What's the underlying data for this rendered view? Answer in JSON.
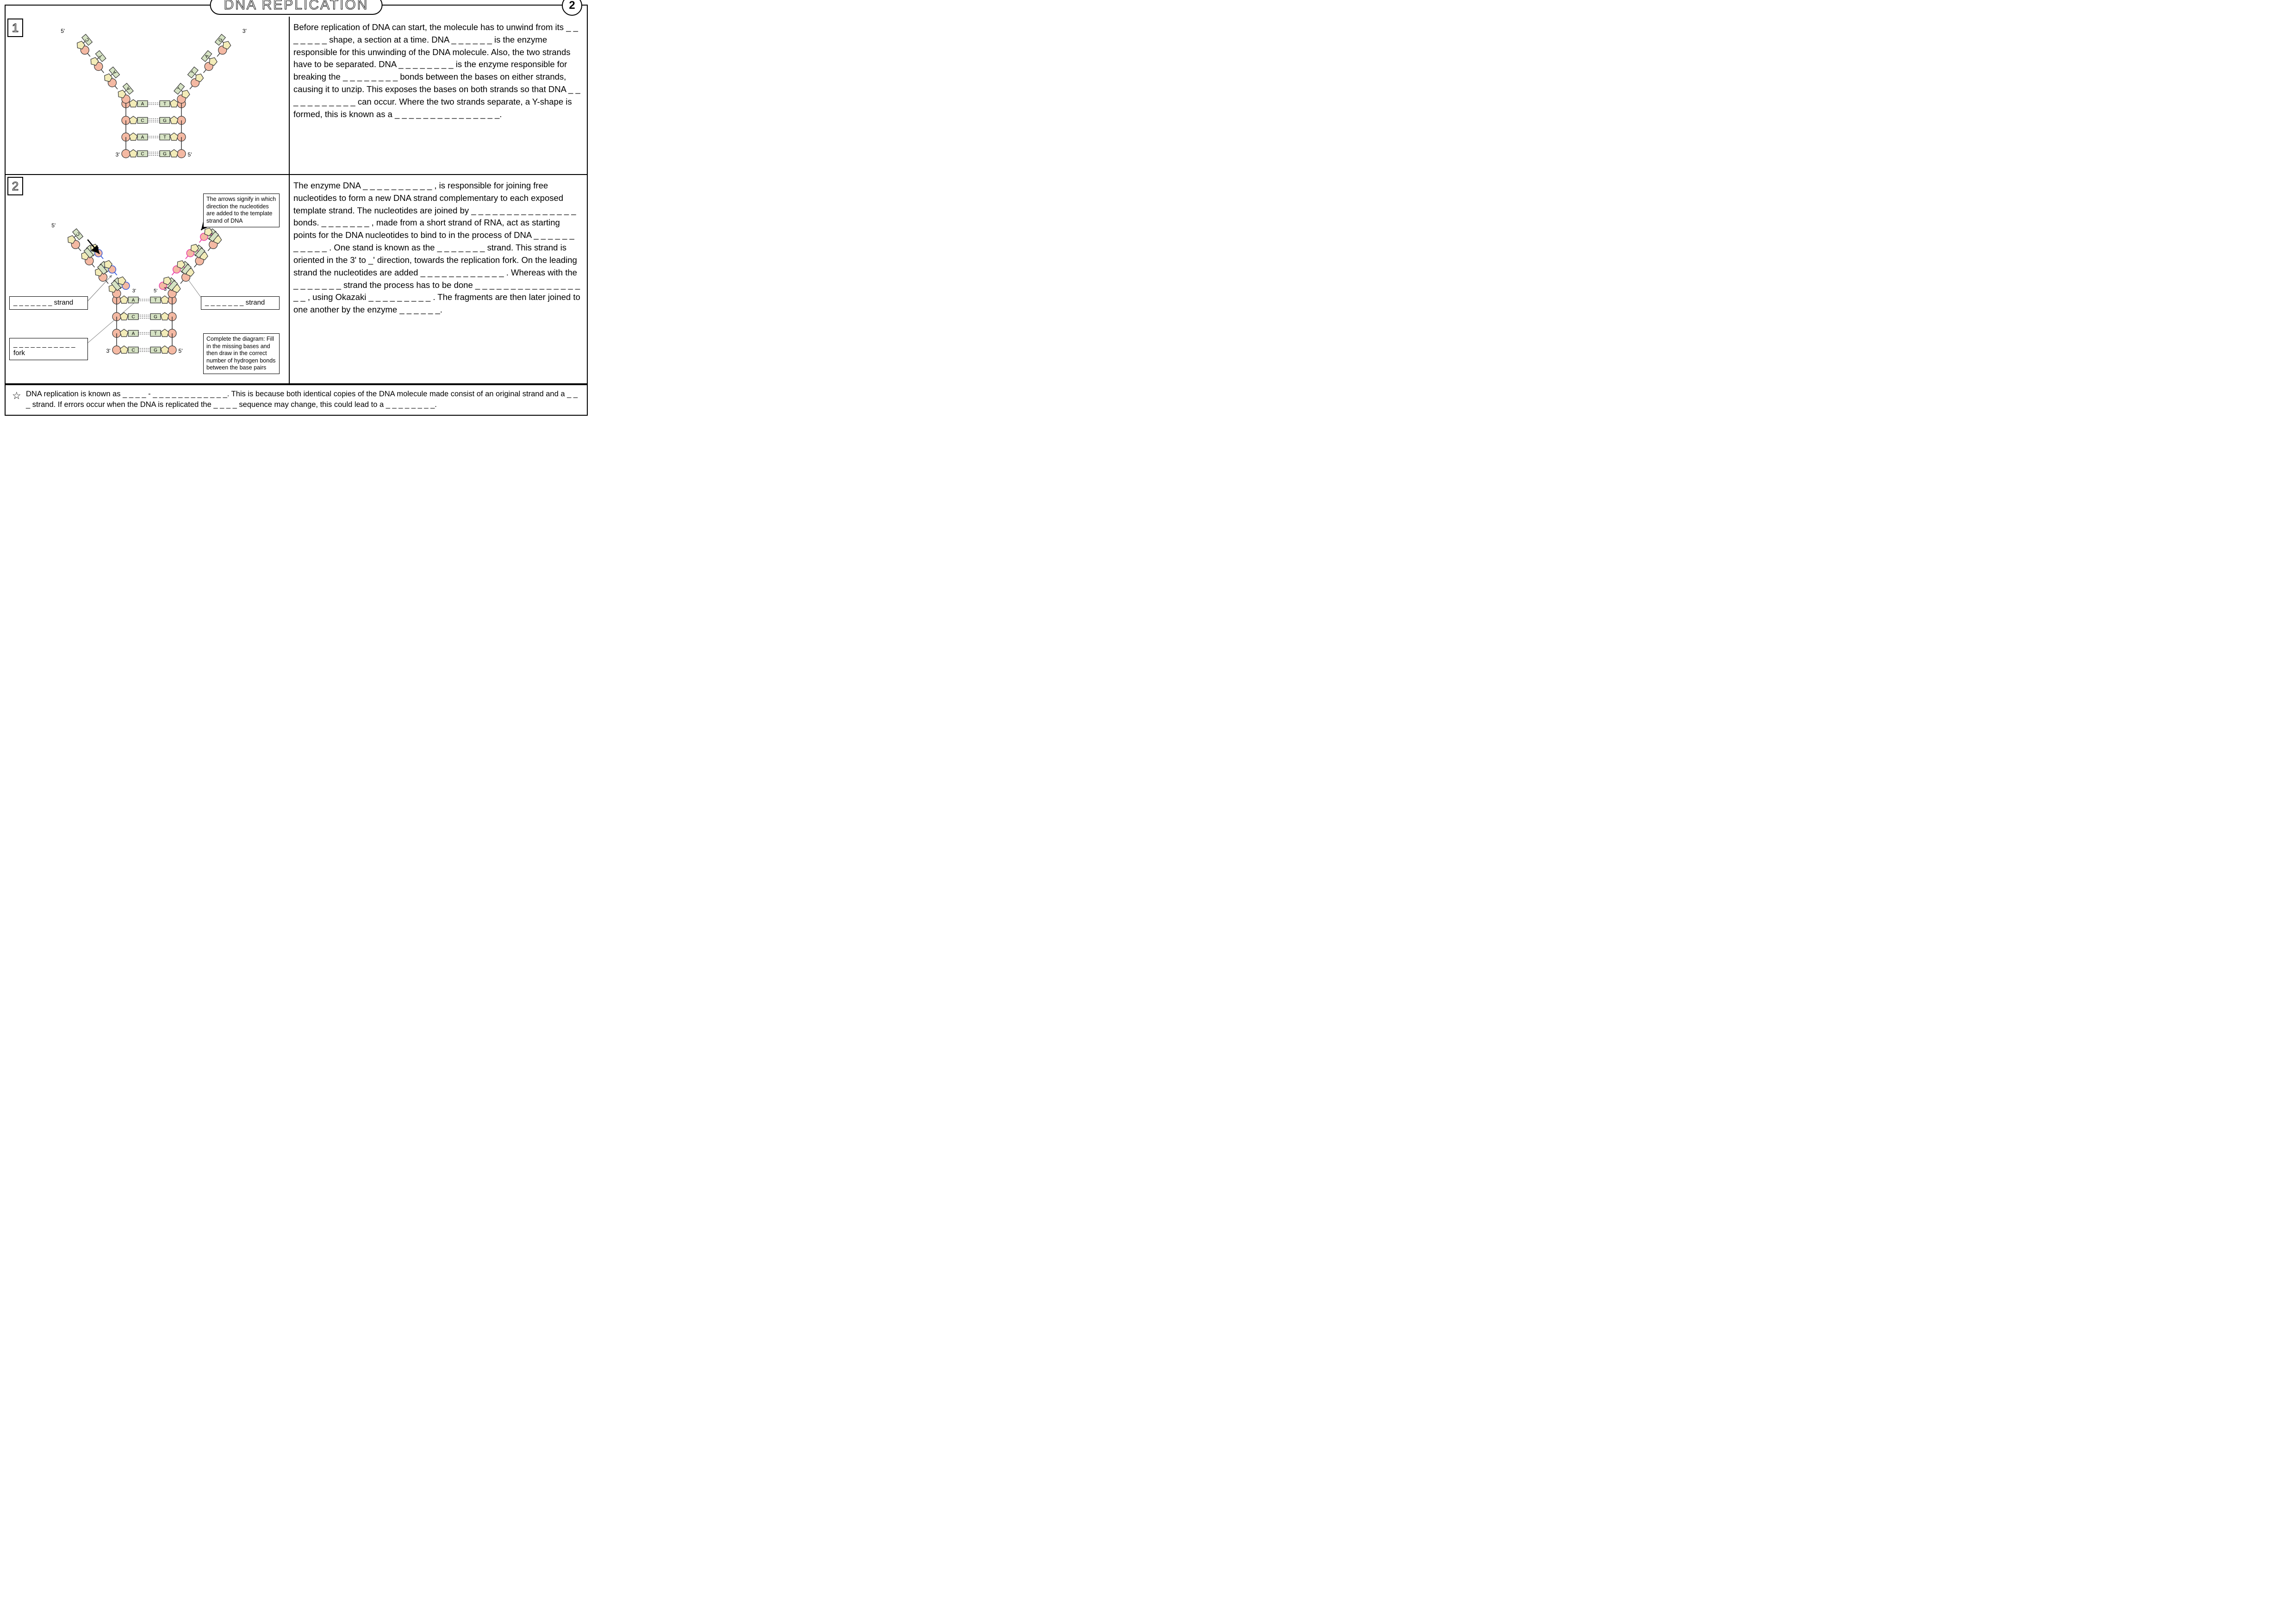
{
  "title": "DNA REPLICATION",
  "page_number": "2",
  "section1": {
    "number": "1",
    "text": "Before replication of DNA can start, the molecule has to unwind from its _ _ _ _ _ _ _ shape, a section at a time. DNA _ _ _ _ _ _ is the enzyme responsible for this unwinding of the DNA molecule. Also, the two strands have to be separated. DNA _ _ _ _ _ _ _ _ is the enzyme responsible for breaking the _ _ _ _ _ _ _ _ bonds between the bases on either strands, causing it to unzip. This exposes the bases on both strands so that DNA _ _ _ _ _ _ _ _ _ _ _ can occur. Where the two strands separate, a Y-shape is formed, this is known as a _ _ _ _ _ _ _ _ _ _ _   _ _ _ _."
  },
  "section2": {
    "number": "2",
    "text": "The enzyme DNA _ _ _ _ _ _ _ _ _ _ , is responsible for joining free nucleotides to form a new DNA strand complementary to each exposed template strand. The nucleotides are joined by _ _ _ _ _ _ _ _ _ _ _ _ _ _ _ bonds. _ _ _ _ _ _ _ , made from a short strand of RNA, act as starting points for the DNA nucleotides to bind to in the process of DNA _ _ _ _ _ _ _ _ _ _ _ . One stand is known as the _ _ _ _ _ _ _ strand. This strand is oriented in the 3' to _' direction, towards the replication fork. On the leading strand the nucleotides are added _ _ _ _ _ _ _ _ _ _ _ _ . Whereas with the _ _ _ _ _ _ _ strand the process has to be done _ _ _ _ _ _ _ _ _ _ _ _ _ _ _ _ _ , using Okazaki _ _ _ _ _ _ _ _ _ . The fragments are then later joined to one another by the enzyme _ _ _ _ _ _.",
    "strand_label_left": "_ _ _ _ _ _ _ strand",
    "strand_label_right": "_ _ _ _ _ _ _ strand",
    "fork_label": "_ _ _ _ _ _ _ _ _ _ _ fork",
    "arrow_note": "The arrows signify in which direction the nucleotides are added to the template strand of DNA",
    "complete_note": "Complete the diagram: Fill in the missing bases and then draw in the correct number of hydrogen bonds between the base pairs"
  },
  "footer_text": "DNA replication is known as _ _ _ _ - _ _ _ _ _ _ _ _ _ _ _ _. This is because both identical copies of the DNA molecule made consist of an original strand and a _ _ _ strand. If errors occur when the DNA is replicated the _ _ _ _ sequence may change, this could lead to a _ _ _ _ _ _ _ _.",
  "colors": {
    "phosphate": "#f4b9a3",
    "sugar": "#f3ecb8",
    "base": "#d6e3c4",
    "outline": "#333333",
    "blue_strand": "#3a5bd9",
    "pink_strand": "#e83fa8",
    "arrow_gray": "#888888"
  },
  "diagram1": {
    "end_labels": {
      "tl": "5'",
      "tr": "3'",
      "bl": "3'",
      "br": "5'"
    },
    "left_arm_bases": [
      "C",
      "T",
      "A",
      "A"
    ],
    "right_arm_bases": [
      "G",
      "A",
      "T",
      "T"
    ],
    "stem_pairs": [
      [
        "A",
        "T"
      ],
      [
        "C",
        "G"
      ],
      [
        "A",
        "T"
      ],
      [
        "C",
        "G"
      ]
    ]
  },
  "diagram2": {
    "end_labels": {
      "tl": "5'",
      "tr": "3'",
      "bl": "3'",
      "br": "5'",
      "inner_l": "3'",
      "inner_r": "3'",
      "pink_top": "5'",
      "pink_bot": "5'"
    },
    "left_arm_bases": [
      "C",
      "T",
      "A",
      "A"
    ],
    "right_arm_bases": [
      "G",
      "",
      "",
      "T"
    ],
    "stem_pairs": [
      [
        "A",
        "T"
      ],
      [
        "C",
        "G"
      ],
      [
        "A",
        "T"
      ],
      [
        "C",
        "G"
      ]
    ]
  }
}
